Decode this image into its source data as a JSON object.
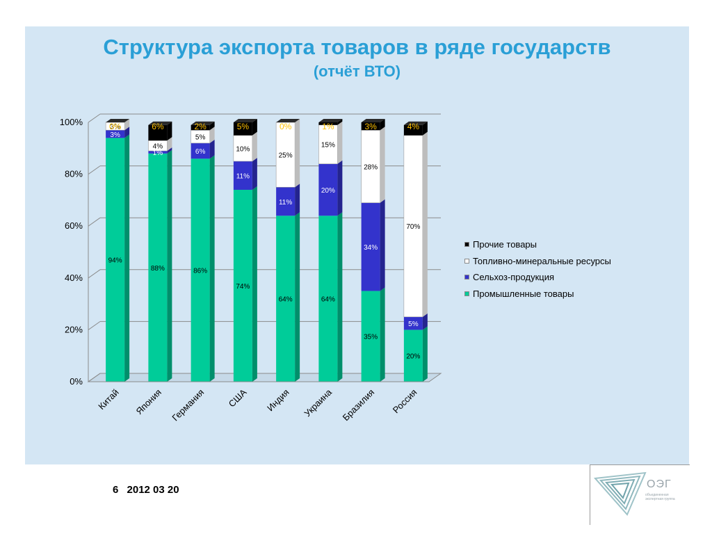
{
  "slide": {
    "title": "Структура экспорта товаров в ряде государств",
    "subtitle": "(отчёт ВТО)",
    "page_number": "6",
    "date": "2012 03 20",
    "logo": {
      "text": "ОЭГ",
      "caption": "объединенная экспертная группа"
    }
  },
  "colors": {
    "background": "#d4e6f4",
    "title": "#2a9fd6",
    "manufactured": "#00cc99",
    "agricultural": "#3333cc",
    "fuel_mineral": "#ffffff",
    "other": "#000000",
    "top_label": "#ffc000"
  },
  "chart_data": {
    "type": "bar",
    "stacked": true,
    "percent": true,
    "categories": [
      "Китай",
      "Япония",
      "Германия",
      "США",
      "Индия",
      "Украина",
      "Бразилия",
      "Россия"
    ],
    "series": [
      {
        "name": "Промышленные товары",
        "values": [
          94,
          88,
          86,
          74,
          64,
          64,
          35,
          20
        ],
        "labels": [
          "94%",
          "88%",
          "86%",
          "74%",
          "64%",
          "64%",
          "35%",
          "20%"
        ]
      },
      {
        "name": "Сельхоз-продукция",
        "values": [
          3,
          1,
          6,
          11,
          11,
          20,
          34,
          5
        ],
        "labels": [
          "3%",
          "1%",
          "6%",
          "11%",
          "11%",
          "20%",
          "34%",
          "5%"
        ]
      },
      {
        "name": "Топливно-минеральные ресурсы",
        "values": [
          3,
          4,
          5,
          10,
          25,
          15,
          28,
          70
        ],
        "labels": [
          "3%",
          "4%",
          "5%",
          "10%",
          "25%",
          "15%",
          "28%",
          "70%"
        ]
      },
      {
        "name": "Прочие товары",
        "values": [
          0,
          6,
          2,
          5,
          0,
          1,
          3,
          4
        ],
        "labels": [
          "0%",
          "6%",
          "2%",
          "5%",
          "0%",
          "1%",
          "3%",
          "4%"
        ]
      }
    ],
    "ylim": [
      0,
      100
    ],
    "yticks": [
      "0%",
      "20%",
      "40%",
      "60%",
      "80%",
      "100%"
    ],
    "grid": true,
    "legend_position": "right",
    "three_d": true
  }
}
